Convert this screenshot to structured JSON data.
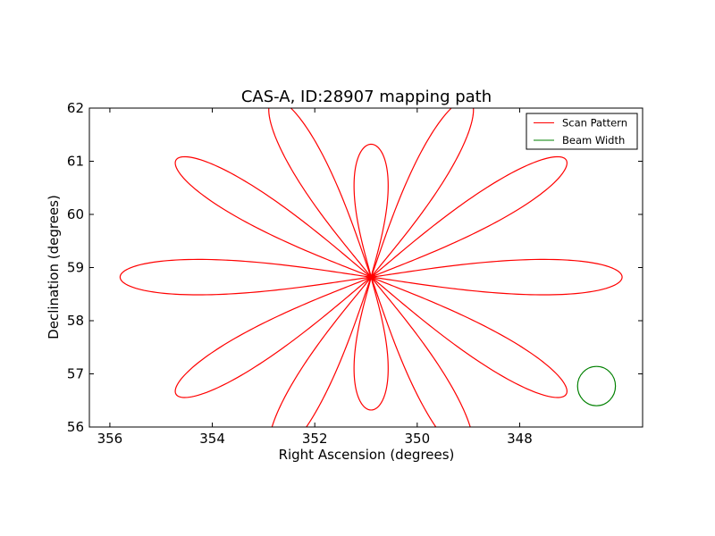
{
  "chart_data": {
    "type": "line",
    "title": "CAS-A, ID:28907 mapping path",
    "xlabel": "Right Ascension (degrees)",
    "ylabel": "Declination (degrees)",
    "xlim": [
      356.4,
      345.6
    ],
    "ylim": [
      56,
      62
    ],
    "x_inverted": true,
    "xticks": [
      356,
      354,
      352,
      350,
      348
    ],
    "yticks": [
      56,
      57,
      58,
      59,
      60,
      61,
      62
    ],
    "xtick_labels": [
      "356",
      "354",
      "352",
      "350",
      "348"
    ],
    "ytick_labels": [
      "56",
      "57",
      "58",
      "59",
      "60",
      "61",
      "62"
    ],
    "grid": false,
    "legend_position": "top-right",
    "series": [
      {
        "name": "Scan Pattern",
        "color": "#ff0000",
        "pattern": "rose",
        "center": [
          350.9,
          58.82
        ],
        "petals": 12,
        "petal_angles_deg": [
          0,
          30,
          60,
          90,
          120,
          150,
          180,
          210,
          240,
          270,
          300,
          330
        ],
        "petal_reach_deg": [
          4.9,
          4.4,
          3.85,
          2.5,
          3.85,
          4.4,
          4.9,
          4.4,
          3.85,
          2.5,
          3.85,
          4.4
        ],
        "petal_half_width_deg": 0.45
      },
      {
        "name": "Beam Width",
        "color": "#008000",
        "pattern": "circle",
        "center": [
          346.5,
          56.77
        ],
        "radius": 0.37
      }
    ]
  }
}
